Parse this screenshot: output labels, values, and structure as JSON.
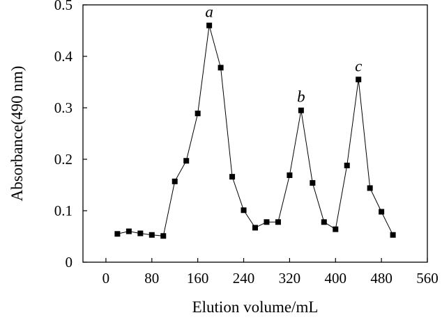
{
  "chart_data": {
    "type": "line",
    "title": "",
    "xlabel": "Elution volume/mL",
    "ylabel": "Absorbance(490 nm)",
    "xlim": [
      -40,
      560
    ],
    "ylim": [
      0,
      0.5
    ],
    "xticks": [
      0,
      80,
      160,
      240,
      320,
      400,
      480,
      560
    ],
    "yticks": [
      0,
      0.1,
      0.2,
      0.3,
      0.4,
      0.5
    ],
    "ytick_labels": [
      "0",
      "0.1",
      "0.2",
      "0.3",
      "0.4",
      "0.5"
    ],
    "grid": false,
    "marker": "square",
    "line_color": "#000000",
    "series": [
      {
        "x": [
          20,
          40,
          60,
          80,
          100,
          120,
          140,
          160,
          180,
          200,
          220,
          240,
          260,
          280,
          300,
          320,
          340,
          360,
          380,
          400,
          420,
          440,
          460,
          480,
          500
        ],
        "y": [
          0.055,
          0.06,
          0.056,
          0.053,
          0.051,
          0.157,
          0.197,
          0.289,
          0.46,
          0.378,
          0.166,
          0.101,
          0.067,
          0.078,
          0.078,
          0.169,
          0.295,
          0.154,
          0.078,
          0.064,
          0.188,
          0.355,
          0.144,
          0.098,
          0.053
        ]
      }
    ],
    "annotations": [
      {
        "text": "a",
        "x": 180,
        "y": 0.46
      },
      {
        "text": "b",
        "x": 340,
        "y": 0.295
      },
      {
        "text": "c",
        "x": 440,
        "y": 0.355
      }
    ]
  }
}
